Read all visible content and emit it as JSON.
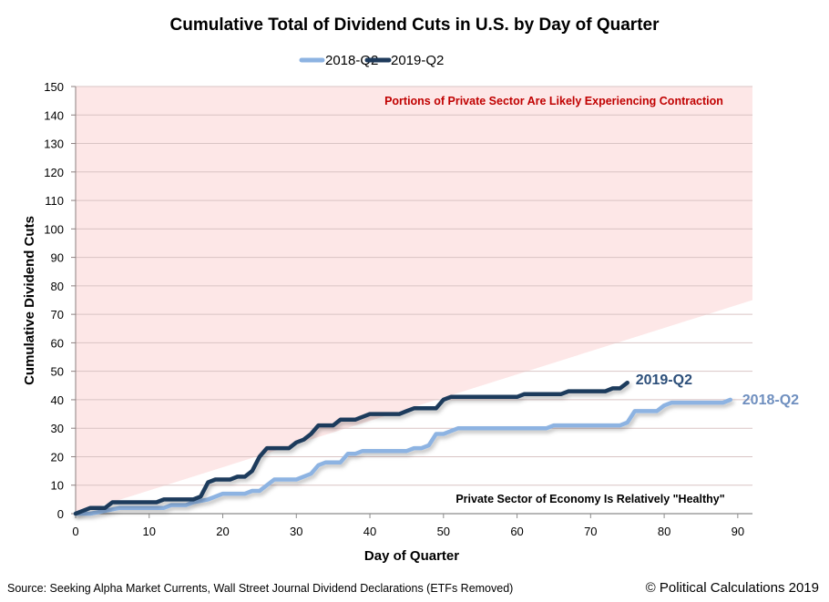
{
  "chart_data": {
    "type": "line",
    "title": "Cumulative Total of Dividend Cuts in U.S. by Day of Quarter",
    "xlabel": "Day of Quarter",
    "ylabel": "Cumulative Dividend Cuts",
    "xlim": [
      0,
      92
    ],
    "ylim": [
      0,
      150
    ],
    "x_ticks": [
      0,
      10,
      20,
      30,
      40,
      50,
      60,
      70,
      80,
      90
    ],
    "y_ticks": [
      0,
      10,
      20,
      30,
      40,
      50,
      60,
      70,
      80,
      90,
      100,
      110,
      120,
      130,
      140,
      150
    ],
    "grid": "horizontal",
    "legend_position": "top-center",
    "colors": {
      "series_2018": "#8db3e2",
      "series_2019": "#1f3b5c",
      "contraction_zone": "#fde7e7",
      "contraction_text": "#c00000",
      "label_2018": "#6f8fbf",
      "label_2019": "#2d4f7a"
    },
    "series": [
      {
        "name": "2018-Q2",
        "x": [
          0,
          2,
          4,
          6,
          8,
          10,
          12,
          13,
          15,
          16,
          18,
          20,
          21,
          23,
          24,
          25,
          27,
          28,
          30,
          32,
          33,
          34,
          36,
          37,
          38,
          39,
          40,
          42,
          44,
          45,
          46,
          47,
          48,
          49,
          50,
          51,
          52,
          53,
          55,
          57,
          59,
          61,
          63,
          64,
          65,
          66,
          68,
          70,
          72,
          73,
          74,
          75,
          76,
          77,
          79,
          80,
          81,
          83,
          85,
          87,
          88,
          89
        ],
        "y": [
          0,
          0,
          1,
          2,
          2,
          2,
          2,
          3,
          3,
          4,
          5,
          7,
          7,
          7,
          8,
          8,
          12,
          12,
          12,
          14,
          17,
          18,
          18,
          21,
          21,
          22,
          22,
          22,
          22,
          22,
          23,
          23,
          24,
          28,
          28,
          29,
          30,
          30,
          30,
          30,
          30,
          30,
          30,
          30,
          31,
          31,
          31,
          31,
          31,
          31,
          31,
          32,
          36,
          36,
          36,
          38,
          39,
          39,
          39,
          39,
          39,
          40
        ]
      },
      {
        "name": "2019-Q2",
        "x": [
          0,
          2,
          4,
          5,
          7,
          9,
          11,
          12,
          14,
          16,
          17,
          18,
          19,
          20,
          21,
          22,
          23,
          24,
          25,
          26,
          27,
          28,
          29,
          30,
          31,
          32,
          33,
          34,
          35,
          36,
          37,
          38,
          39,
          40,
          41,
          42,
          43,
          44,
          45,
          46,
          47,
          48,
          49,
          50,
          51,
          52,
          54,
          56,
          58,
          60,
          61,
          63,
          65,
          66,
          67,
          69,
          71,
          72,
          73,
          74,
          75
        ],
        "y": [
          0,
          2,
          2,
          4,
          4,
          4,
          4,
          5,
          5,
          5,
          6,
          11,
          12,
          12,
          12,
          13,
          13,
          15,
          20,
          23,
          23,
          23,
          23,
          25,
          26,
          28,
          31,
          31,
          31,
          33,
          33,
          33,
          34,
          35,
          35,
          35,
          35,
          35,
          36,
          37,
          37,
          37,
          37,
          40,
          41,
          41,
          41,
          41,
          41,
          41,
          42,
          42,
          42,
          42,
          43,
          43,
          43,
          43,
          44,
          44,
          46
        ]
      }
    ],
    "contraction_zone": {
      "description": "shaded region above line from (0,0) to (92,75)",
      "boundary_start": [
        0,
        0
      ],
      "boundary_end": [
        92,
        75
      ]
    },
    "annotations": {
      "contraction": "Portions of Private Sector Are Likely Experiencing Contraction",
      "healthy": "Private Sector of Economy Is Relatively \"Healthy\"",
      "end_label_2019": "2019-Q2",
      "end_label_2018": "2018-Q2"
    },
    "legend": [
      "2018-Q2",
      "2019-Q2"
    ]
  },
  "footer": {
    "source": "Source: Seeking Alpha Market Currents, Wall Street Journal Dividend Declarations (ETFs Removed)",
    "copyright": "© Political Calculations 2019"
  }
}
